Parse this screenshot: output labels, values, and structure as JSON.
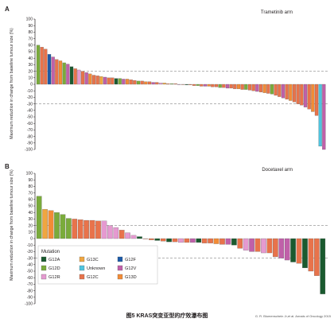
{
  "figure": {
    "caption": "图5 KRAS突变亚型的疗效瀑布图",
    "source": "G. R. Blumenschein Jr,et al. Annals of Oncology 2015"
  },
  "colors": {
    "G12A": "#1a5a2f",
    "G12D": "#7aab3b",
    "G12R": "#e59ad0",
    "G13C": "#f0a640",
    "Unknown": "#4ec4df",
    "G12C": "#e8734b",
    "G12F": "#1c5aa8",
    "G12V": "#c060a9",
    "G13D": "#f28b36",
    "reference_line": "#888888",
    "bar_outline": "#5a5a5a"
  },
  "legend": {
    "title": "Mutation",
    "items": [
      "G12A",
      "G13C",
      "G12F",
      "G12D",
      "Unknown",
      "G12V",
      "G12R",
      "G12C",
      "G13D"
    ]
  },
  "chart_data": [
    {
      "type": "bar",
      "panel_label": "A",
      "title": "Trametinib arm",
      "ylabel": "Maximum reduction in change from baseline tumour size (%)",
      "xlabel": "",
      "ylim": [
        -100,
        100
      ],
      "yticks": [
        100,
        90,
        80,
        70,
        60,
        50,
        40,
        30,
        20,
        10,
        0,
        -10,
        -20,
        -30,
        -40,
        -50,
        -60,
        -70,
        -80,
        -90,
        -100
      ],
      "reference_lines": [
        20,
        -30
      ],
      "grid": false,
      "series": [
        {
          "values": [
            60,
            57,
            54,
            46,
            42,
            38,
            36,
            33,
            31,
            27,
            24,
            22,
            20,
            18,
            16,
            14,
            13,
            12,
            11,
            10,
            10,
            9,
            9,
            8,
            8,
            7,
            6,
            5,
            5,
            4,
            4,
            3,
            3,
            2,
            2,
            1,
            1,
            1,
            0,
            0,
            -1,
            -1,
            -2,
            -2,
            -3,
            -3,
            -3,
            -4,
            -4,
            -5,
            -5,
            -6,
            -6,
            -7,
            -7,
            -8,
            -8,
            -9,
            -10,
            -11,
            -12,
            -13,
            -14,
            -15,
            -17,
            -19,
            -21,
            -23,
            -25,
            -27,
            -30,
            -32,
            -35,
            -38,
            -42,
            -48,
            -95,
            -100
          ],
          "mutations": [
            "G12D",
            "G12C",
            "G12C",
            "G12F",
            "G12V",
            "G12C",
            "G13D",
            "G12D",
            "G12V",
            "G12A",
            "G12C",
            "G12R",
            "G12C",
            "G12V",
            "G13D",
            "G12C",
            "G12C",
            "G13C",
            "G12V",
            "G12C",
            "G12C",
            "G12A",
            "G12D",
            "G12V",
            "G13D",
            "G12C",
            "G12C",
            "G12D",
            "G12C",
            "G13D",
            "G12C",
            "G12V",
            "G12C",
            "G12R",
            "G13C",
            "G12C",
            "G12D",
            "G12C",
            "G12V",
            "G12C",
            "G12A",
            "G12C",
            "G12C",
            "G12D",
            "G12C",
            "G12V",
            "G13D",
            "G12C",
            "G12C",
            "G12D",
            "G12C",
            "G12V",
            "G12C",
            "G12C",
            "G13D",
            "G12C",
            "G12D",
            "G12C",
            "G12C",
            "G12V",
            "G12C",
            "G13D",
            "G12C",
            "G12D",
            "G12C",
            "G12C",
            "G12V",
            "G12C",
            "G13D",
            "G12C",
            "G12C",
            "G12C",
            "G12V",
            "G12C",
            "G13D",
            "G12C",
            "Unknown",
            "G12V"
          ]
        }
      ]
    },
    {
      "type": "bar",
      "panel_label": "B",
      "title": "Docetaxel arm",
      "ylabel": "Maximum reduction in change from baseline tumour size (%)",
      "xlabel": "",
      "ylim": [
        -100,
        100
      ],
      "yticks": [
        100,
        90,
        80,
        70,
        60,
        50,
        40,
        30,
        20,
        10,
        0,
        -10,
        -20,
        -30,
        -40,
        -50,
        -60,
        -70,
        -80,
        -90,
        -100
      ],
      "reference_lines": [
        20,
        -30
      ],
      "grid": false,
      "series": [
        {
          "values": [
            65,
            45,
            43,
            40,
            37,
            31,
            30,
            29,
            28,
            28,
            27,
            27,
            20,
            17,
            13,
            9,
            5,
            3,
            0,
            -2,
            -3,
            -4,
            -5,
            -5,
            -6,
            -6,
            -6,
            -6,
            -7,
            -7,
            -8,
            -9,
            -9,
            -10,
            -15,
            -18,
            -20,
            -20,
            -22,
            -22,
            -28,
            -30,
            -33,
            -36,
            -38,
            -45,
            -50,
            -57,
            -85
          ],
          "mutations": [
            "G12D",
            "G13C",
            "G13D",
            "G12D",
            "G12D",
            "G12D",
            "G12C",
            "G12C",
            "G12C",
            "G12C",
            "G12C",
            "G12R",
            "G12R",
            "G12R",
            "G12C",
            "G12R",
            "G12R",
            "G12A",
            "G12C",
            "G12C",
            "G12A",
            "G12C",
            "G12A",
            "G12C",
            "G12R",
            "G12C",
            "G12V",
            "G12A",
            "G12C",
            "G12C",
            "G13D",
            "G12C",
            "G12V",
            "G12A",
            "G12C",
            "G12R",
            "G12V",
            "G12C",
            "G12R",
            "G12C",
            "G12C",
            "G12V",
            "G12V",
            "G12A",
            "G12C",
            "G12A",
            "G12C",
            "G12C",
            "G12A"
          ]
        }
      ]
    }
  ]
}
